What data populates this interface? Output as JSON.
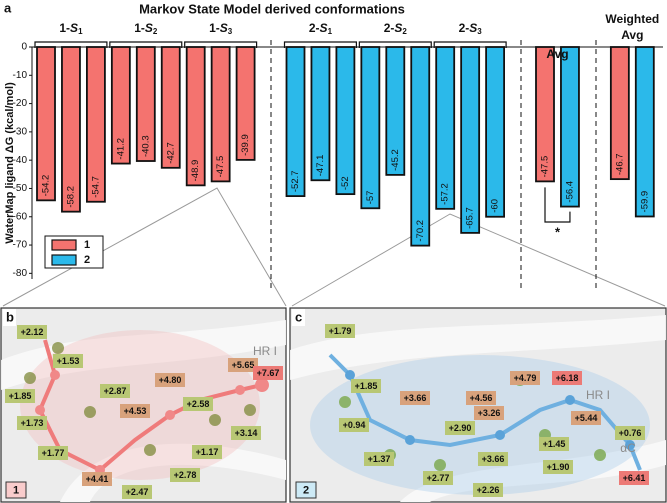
{
  "chart_data": {
    "type": "bar",
    "panel_letter": "a",
    "title": "Markov State Model derived conformations",
    "ylabel": "WaterMap ligand ΔG (kcal/mol)",
    "ylim": [
      -82,
      0
    ],
    "yticks": [
      0,
      -10,
      -20,
      -30,
      -40,
      -50,
      -60,
      -70,
      -80
    ],
    "series": [
      {
        "name": "1",
        "color": "#f4736f"
      },
      {
        "name": "2",
        "color": "#2bb9ea"
      }
    ],
    "groups": [
      {
        "label": {
          "prefix": "1-",
          "state": "S",
          "sub": "1"
        },
        "values": [
          -54.2,
          -58.2,
          -54.7
        ],
        "colors": [
          "#f4736f",
          "#f4736f",
          "#f4736f"
        ]
      },
      {
        "label": {
          "prefix": "1-",
          "state": "S",
          "sub": "2"
        },
        "values": [
          -41.2,
          -40.3,
          -42.7
        ],
        "colors": [
          "#f4736f",
          "#f4736f",
          "#f4736f"
        ]
      },
      {
        "label": {
          "prefix": "1-",
          "state": "S",
          "sub": "3"
        },
        "values": [
          -48.9,
          -47.5,
          -39.9
        ],
        "colors": [
          "#f4736f",
          "#f4736f",
          "#f4736f"
        ]
      },
      {
        "label": {
          "prefix": "2-",
          "state": "S",
          "sub": "1"
        },
        "values": [
          -52.7,
          -47.1,
          -52.0
        ],
        "colors": [
          "#2bb9ea",
          "#2bb9ea",
          "#2bb9ea"
        ]
      },
      {
        "label": {
          "prefix": "2-",
          "state": "S",
          "sub": "2"
        },
        "values": [
          -57.0,
          -45.2,
          -70.2
        ],
        "colors": [
          "#2bb9ea",
          "#2bb9ea",
          "#2bb9ea"
        ]
      },
      {
        "label": {
          "prefix": "2-",
          "state": "S",
          "sub": "3"
        },
        "values": [
          -57.2,
          -65.7,
          -60.0
        ],
        "colors": [
          "#2bb9ea",
          "#2bb9ea",
          "#2bb9ea"
        ]
      },
      {
        "label_lines": [
          "Avg"
        ],
        "values": [
          -47.5,
          -56.4
        ],
        "colors": [
          "#f4736f",
          "#2bb9ea"
        ]
      },
      {
        "label_lines": [
          "Weighted",
          "Avg"
        ],
        "values": [
          -46.7,
          -59.9
        ],
        "colors": [
          "#f4736f",
          "#2bb9ea"
        ]
      }
    ],
    "significance": "*"
  },
  "panels": [
    {
      "letter": "b",
      "tag": "1",
      "tag_color": "#f9cccc",
      "region_label": "HR I",
      "labels": [
        {
          "text": "+2.12",
          "color": "#b8c774"
        },
        {
          "text": "+1.53",
          "color": "#b8c774"
        },
        {
          "text": "+1.85",
          "color": "#b8c774"
        },
        {
          "text": "+2.87",
          "color": "#b8c774"
        },
        {
          "text": "+4.80",
          "color": "#d8a27c"
        },
        {
          "text": "+2.58",
          "color": "#b8c774"
        },
        {
          "text": "+5.65",
          "color": "#d8a27c"
        },
        {
          "text": "+7.67",
          "color": "#ec7a76"
        },
        {
          "text": "+4.53",
          "color": "#d8a27c"
        },
        {
          "text": "+1.73",
          "color": "#b8c774"
        },
        {
          "text": "+3.14",
          "color": "#b8c774"
        },
        {
          "text": "+1.17",
          "color": "#b8c774"
        },
        {
          "text": "+1.77",
          "color": "#b8c774"
        },
        {
          "text": "+2.78",
          "color": "#b8c774"
        },
        {
          "text": "+4.41",
          "color": "#d8a27c"
        },
        {
          "text": "+2.47",
          "color": "#b8c774"
        }
      ]
    },
    {
      "letter": "c",
      "tag": "2",
      "tag_color": "#cdeaf6",
      "region_label": "HR I",
      "extra_label": "αC",
      "labels": [
        {
          "text": "+1.79",
          "color": "#b8c774"
        },
        {
          "text": "+1.85",
          "color": "#b8c774"
        },
        {
          "text": "+3.66",
          "color": "#d8a27c"
        },
        {
          "text": "+4.56",
          "color": "#d8a27c"
        },
        {
          "text": "+4.79",
          "color": "#d8a27c"
        },
        {
          "text": "+6.18",
          "color": "#ec7a76"
        },
        {
          "text": "+3.26",
          "color": "#d8a27c"
        },
        {
          "text": "+5.44",
          "color": "#d8a27c"
        },
        {
          "text": "+0.94",
          "color": "#b8c774"
        },
        {
          "text": "+2.90",
          "color": "#b8c774"
        },
        {
          "text": "+0.76",
          "color": "#b8c774"
        },
        {
          "text": "+1.45",
          "color": "#b8c774"
        },
        {
          "text": "+1.37",
          "color": "#b8c774"
        },
        {
          "text": "+3.66",
          "color": "#b8c774"
        },
        {
          "text": "+1.90",
          "color": "#b8c774"
        },
        {
          "text": "+2.77",
          "color": "#b8c774"
        },
        {
          "text": "+2.26",
          "color": "#b8c774"
        },
        {
          "text": "+6.41",
          "color": "#ec7a76"
        }
      ]
    }
  ]
}
